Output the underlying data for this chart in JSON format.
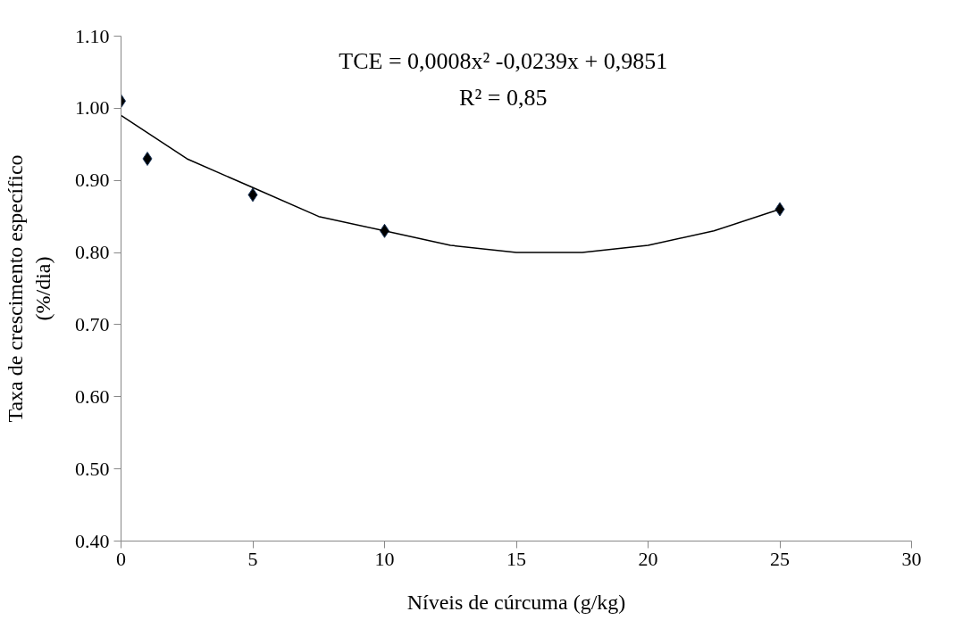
{
  "chart_data": {
    "type": "scatter",
    "xlabel": "Níveis de cúrcuma (g/kg)",
    "ylabel": "Taxa de crescimento específico\n(%/dia)",
    "annotations": [
      "TCE = 0,0008x² -0,0239x + 0,9851",
      "R² = 0,85"
    ],
    "xlim": [
      0,
      30
    ],
    "xticks": [
      0,
      5,
      10,
      15,
      20,
      25,
      30
    ],
    "ylim": [
      0.4,
      1.1
    ],
    "yticks": [
      {
        "value": 0.4,
        "label": "0.40"
      },
      {
        "value": 0.5,
        "label": "0.50"
      },
      {
        "value": 0.6,
        "label": "0.60"
      },
      {
        "value": 0.7,
        "label": "0.70"
      },
      {
        "value": 0.8,
        "label": "0.80"
      },
      {
        "value": 0.9,
        "label": "0.90"
      },
      {
        "value": 1.0,
        "label": "1.00"
      },
      {
        "value": 1.1,
        "label": "1.10"
      }
    ],
    "grid": false,
    "series": [
      {
        "marker": "diamond",
        "color": "#000000",
        "x": [
          0,
          1,
          5,
          10,
          25
        ],
        "values": [
          1.01,
          0.93,
          0.88,
          0.83,
          0.86
        ]
      },
      {
        "type": "line",
        "marker": "none",
        "color": "#000000",
        "line_style": "solid",
        "x": [
          0,
          2.5,
          5,
          7.5,
          10,
          12.5,
          15,
          17.5,
          20,
          22.5,
          25
        ],
        "values": [
          0.99,
          0.93,
          0.89,
          0.85,
          0.83,
          0.81,
          0.8,
          0.8,
          0.81,
          0.83,
          0.86
        ]
      }
    ]
  }
}
